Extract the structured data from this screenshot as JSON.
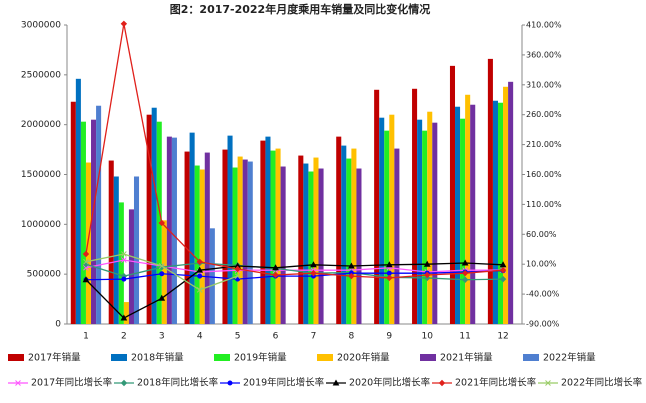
{
  "chart_data": {
    "type": "bar",
    "title": "图2：2017-2022年月度乘用车销量及同比变化情况",
    "categories": [
      "1",
      "2",
      "3",
      "4",
      "5",
      "6",
      "7",
      "8",
      "9",
      "10",
      "11",
      "12"
    ],
    "ylim": [
      0,
      3000000
    ],
    "yticks": [
      0,
      500000,
      1000000,
      1500000,
      2000000,
      2500000,
      3000000
    ],
    "y2lim": [
      -90,
      410
    ],
    "y2ticks": [
      {
        "value": -90,
        "label": "-90.00%"
      },
      {
        "value": -40,
        "label": "-40.00%"
      },
      {
        "value": 10,
        "label": "10.00%"
      },
      {
        "value": 60,
        "label": "60.00%"
      },
      {
        "value": 110,
        "label": "110.00%"
      },
      {
        "value": 160,
        "label": "160.00%"
      },
      {
        "value": 210,
        "label": "210.00%"
      },
      {
        "value": 260,
        "label": "260.00%"
      },
      {
        "value": 310,
        "label": "310.00%"
      },
      {
        "value": 360,
        "label": "360.00%"
      },
      {
        "value": 410,
        "label": "410.00%"
      }
    ],
    "grid": false,
    "series": [
      {
        "name": "2017年销量",
        "color": "#c00000",
        "values": [
          2230000,
          1640000,
          2100000,
          1730000,
          1750000,
          1840000,
          1690000,
          1880000,
          2350000,
          2360000,
          2590000,
          2660000
        ]
      },
      {
        "name": "2018年销量",
        "color": "#0070c0",
        "values": [
          2460000,
          1480000,
          2170000,
          1920000,
          1890000,
          1880000,
          1610000,
          1790000,
          2070000,
          2050000,
          2180000,
          2240000
        ]
      },
      {
        "name": "2019年销量",
        "color": "#22ee22",
        "values": [
          2030000,
          1220000,
          2030000,
          1590000,
          1570000,
          1740000,
          1530000,
          1660000,
          1940000,
          1940000,
          2060000,
          2220000
        ]
      },
      {
        "name": "2020年销量",
        "color": "#ffc000",
        "values": [
          1620000,
          220000,
          1040000,
          1550000,
          1680000,
          1760000,
          1670000,
          1760000,
          2100000,
          2130000,
          2300000,
          2380000
        ]
      },
      {
        "name": "2021年销量",
        "color": "#7030a0",
        "values": [
          2050000,
          1150000,
          1880000,
          1720000,
          1650000,
          1580000,
          1560000,
          1560000,
          1760000,
          2020000,
          2200000,
          2430000
        ]
      },
      {
        "name": "2022年销量",
        "color": "#4f7fd0",
        "values": [
          2190000,
          1480000,
          1870000,
          960000,
          1630000,
          null,
          null,
          null,
          null,
          null,
          null,
          null
        ]
      },
      {
        "name": "2017年同比增长率",
        "color": "#ff55ff",
        "axis": "y2",
        "marker": "cross",
        "values": [
          4,
          17,
          7,
          -3,
          0,
          0,
          0,
          0,
          4,
          -3,
          0,
          0
        ]
      },
      {
        "name": "2018年同比增长率",
        "color": "#339977",
        "axis": "y2",
        "marker": "diamond",
        "values": [
          10,
          -10,
          5,
          12,
          8,
          3,
          -5,
          -4,
          -12,
          -13,
          -16,
          -15
        ]
      },
      {
        "name": "2019年同比增长率",
        "color": "#0000ff",
        "axis": "y2",
        "marker": "circle",
        "values": [
          -16,
          -15,
          -6,
          -10,
          -15,
          -10,
          -10,
          -5,
          -5,
          -5,
          -3,
          -1
        ]
      },
      {
        "name": "2020年同比增长率",
        "color": "#000000",
        "axis": "y2",
        "marker": "triangle",
        "values": [
          -16,
          -80,
          -47,
          0,
          7,
          4,
          9,
          7,
          9,
          10,
          12,
          9
        ]
      },
      {
        "name": "2021年同比增长率",
        "color": "#e0201b",
        "axis": "y2",
        "marker": "diamond",
        "values": [
          27,
          412,
          79,
          14,
          2,
          -8,
          -5,
          -10,
          -13,
          -8,
          -5,
          0
        ]
      },
      {
        "name": "2022年同比增长率",
        "color": "#99cc66",
        "axis": "y2",
        "marker": "cross",
        "values": [
          14,
          27,
          7,
          -33,
          -10,
          null,
          null,
          null,
          null,
          null,
          null,
          null
        ]
      }
    ]
  }
}
